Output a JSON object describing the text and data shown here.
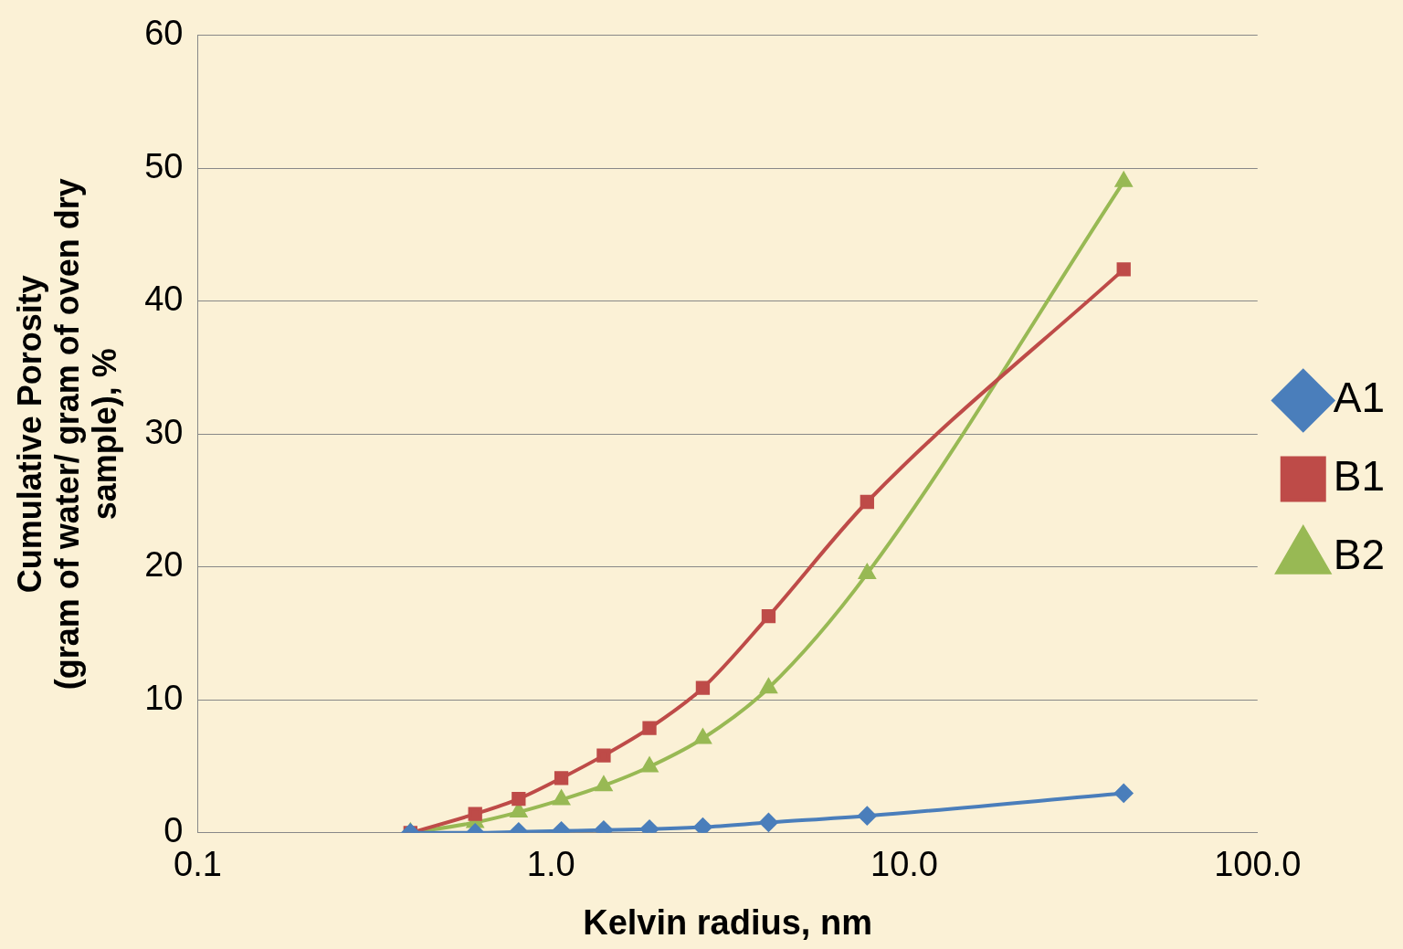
{
  "chart_data": {
    "type": "line",
    "xlabel": "Kelvin radius, nm",
    "ylabel": "Cumulative Porosity\n(gram of water/ gram of oven dry\nsample), %",
    "x": [
      0.4,
      0.61,
      0.81,
      1.07,
      1.41,
      1.9,
      2.69,
      4.13,
      7.85,
      41.8
    ],
    "series": [
      {
        "name": "A1",
        "color": "#4a7ebb",
        "marker": "diamond",
        "values": [
          0,
          0,
          0.07,
          0.14,
          0.21,
          0.28,
          0.43,
          0.78,
          1.28,
          2.98
        ]
      },
      {
        "name": "B1",
        "color": "#be4b48",
        "marker": "square",
        "values": [
          0,
          1.42,
          2.56,
          4.12,
          5.82,
          7.88,
          10.9,
          16.3,
          24.9,
          42.4
        ]
      },
      {
        "name": "B2",
        "color": "#98b954",
        "marker": "triangle",
        "values": [
          0,
          0.78,
          1.56,
          2.49,
          3.55,
          4.97,
          7.1,
          10.9,
          19.5,
          49.0
        ]
      }
    ],
    "log": "x",
    "xlim": [
      0.1,
      100
    ],
    "xticks": [
      {
        "value": 0.1,
        "label": "0.1"
      },
      {
        "value": 1,
        "label": "1.0"
      },
      {
        "value": 10,
        "label": "10.0"
      },
      {
        "value": 100,
        "label": "100.0"
      }
    ],
    "ylim": [
      0,
      60
    ],
    "yticks": [
      0,
      10,
      20,
      30,
      40,
      50,
      60
    ],
    "grid": "y",
    "legend": "right",
    "line_style": "solid"
  }
}
